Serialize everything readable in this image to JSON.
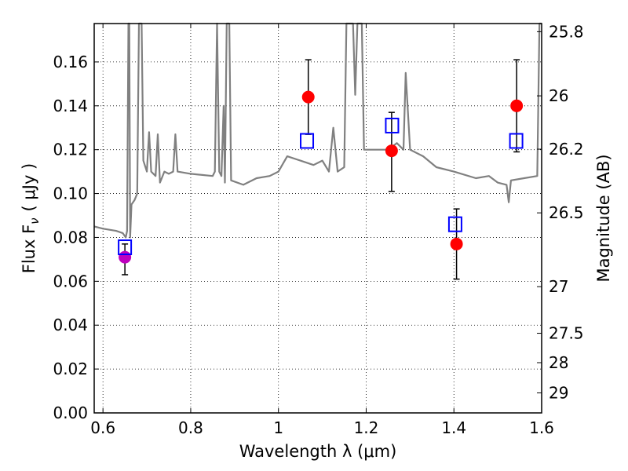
{
  "chart_data": {
    "type": "scatter",
    "xlabel": "Wavelength  λ (μm)",
    "ylabel": "Flux  F",
    "ylabel_sub": "ν",
    "ylabel_unit": "( μJy )",
    "y2label": "Magnitude (AB)",
    "xlim": [
      0.58,
      1.6
    ],
    "ylim": [
      0.0,
      0.1775
    ],
    "grid": true,
    "xticks": [
      {
        "value": 0.6,
        "label": "0.6"
      },
      {
        "value": 0.8,
        "label": "0.8"
      },
      {
        "value": 1.0,
        "label": "1"
      },
      {
        "value": 1.2,
        "label": "1.2"
      },
      {
        "value": 1.4,
        "label": "1.4"
      },
      {
        "value": 1.6,
        "label": "1.6"
      }
    ],
    "yticks": [
      {
        "value": 0.0,
        "label": "0.00"
      },
      {
        "value": 0.02,
        "label": "0.02"
      },
      {
        "value": 0.04,
        "label": "0.04"
      },
      {
        "value": 0.06,
        "label": "0.06"
      },
      {
        "value": 0.08,
        "label": "0.08"
      },
      {
        "value": 0.1,
        "label": "0.10"
      },
      {
        "value": 0.12,
        "label": "0.12"
      },
      {
        "value": 0.14,
        "label": "0.14"
      },
      {
        "value": 0.16,
        "label": "0.16"
      }
    ],
    "y2ticks": [
      {
        "value": 25.8,
        "label": "25.8"
      },
      {
        "value": 26.0,
        "label": "26"
      },
      {
        "value": 26.2,
        "label": "26.2"
      },
      {
        "value": 26.5,
        "label": "26.5"
      },
      {
        "value": 27.0,
        "label": "27"
      },
      {
        "value": 27.5,
        "label": "27.5"
      },
      {
        "value": 28.0,
        "label": "28"
      },
      {
        "value": 29.0,
        "label": "29"
      }
    ],
    "series": [
      {
        "kind": "line",
        "color": "#808080",
        "points": [
          [
            0.58,
            0.085
          ],
          [
            0.6,
            0.084
          ],
          [
            0.63,
            0.083
          ],
          [
            0.645,
            0.082
          ],
          [
            0.652,
            0.08
          ],
          [
            0.655,
            0.083
          ],
          [
            0.658,
            0.178
          ],
          [
            0.66,
            0.178
          ],
          [
            0.662,
            0.08
          ],
          [
            0.665,
            0.095
          ],
          [
            0.672,
            0.097
          ],
          [
            0.678,
            0.1
          ],
          [
            0.682,
            0.178
          ],
          [
            0.688,
            0.178
          ],
          [
            0.692,
            0.115
          ],
          [
            0.7,
            0.11
          ],
          [
            0.705,
            0.128
          ],
          [
            0.71,
            0.11
          ],
          [
            0.72,
            0.108
          ],
          [
            0.725,
            0.127
          ],
          [
            0.73,
            0.105
          ],
          [
            0.74,
            0.11
          ],
          [
            0.75,
            0.109
          ],
          [
            0.76,
            0.11
          ],
          [
            0.765,
            0.127
          ],
          [
            0.77,
            0.11
          ],
          [
            0.8,
            0.109
          ],
          [
            0.85,
            0.108
          ],
          [
            0.855,
            0.11
          ],
          [
            0.86,
            0.178
          ],
          [
            0.865,
            0.11
          ],
          [
            0.87,
            0.108
          ],
          [
            0.875,
            0.14
          ],
          [
            0.878,
            0.105
          ],
          [
            0.882,
            0.178
          ],
          [
            0.888,
            0.178
          ],
          [
            0.892,
            0.106
          ],
          [
            0.92,
            0.104
          ],
          [
            0.95,
            0.107
          ],
          [
            0.98,
            0.108
          ],
          [
            1.0,
            0.11
          ],
          [
            1.02,
            0.117
          ],
          [
            1.05,
            0.115
          ],
          [
            1.08,
            0.113
          ],
          [
            1.1,
            0.115
          ],
          [
            1.115,
            0.11
          ],
          [
            1.125,
            0.13
          ],
          [
            1.135,
            0.11
          ],
          [
            1.15,
            0.112
          ],
          [
            1.155,
            0.178
          ],
          [
            1.16,
            0.178
          ],
          [
            1.165,
            0.178
          ],
          [
            1.17,
            0.178
          ],
          [
            1.175,
            0.145
          ],
          [
            1.18,
            0.178
          ],
          [
            1.19,
            0.178
          ],
          [
            1.195,
            0.12
          ],
          [
            1.22,
            0.12
          ],
          [
            1.25,
            0.12
          ],
          [
            1.27,
            0.123
          ],
          [
            1.285,
            0.12
          ],
          [
            1.29,
            0.155
          ],
          [
            1.3,
            0.12
          ],
          [
            1.33,
            0.117
          ],
          [
            1.36,
            0.112
          ],
          [
            1.4,
            0.11
          ],
          [
            1.45,
            0.107
          ],
          [
            1.48,
            0.108
          ],
          [
            1.5,
            0.105
          ],
          [
            1.52,
            0.104
          ],
          [
            1.525,
            0.096
          ],
          [
            1.53,
            0.106
          ],
          [
            1.56,
            0.107
          ],
          [
            1.59,
            0.108
          ],
          [
            1.595,
            0.178
          ],
          [
            1.6,
            0.178
          ]
        ]
      },
      {
        "kind": "markers",
        "marker": "circle",
        "color": "#ff0000",
        "points": [
          [
            1.068,
            0.144
          ],
          [
            1.258,
            0.1195
          ],
          [
            1.406,
            0.077
          ],
          [
            1.543,
            0.14
          ]
        ]
      },
      {
        "kind": "markers",
        "marker": "circle",
        "color": "#bf00bf",
        "points": [
          [
            0.65,
            0.071
          ]
        ]
      },
      {
        "kind": "markers",
        "marker": "square",
        "color": "#0000ff",
        "points": [
          [
            0.65,
            0.0755
          ],
          [
            1.065,
            0.124
          ],
          [
            1.259,
            0.131
          ],
          [
            1.403,
            0.086
          ],
          [
            1.542,
            0.124
          ]
        ]
      },
      {
        "kind": "errorbars",
        "color": "#000000",
        "bars": [
          {
            "x": 0.65,
            "low": 0.063,
            "high": 0.077
          },
          {
            "x": 1.068,
            "low": 0.127,
            "high": 0.161
          },
          {
            "x": 1.258,
            "low": 0.101,
            "high": 0.137
          },
          {
            "x": 1.406,
            "low": 0.061,
            "high": 0.093
          },
          {
            "x": 1.543,
            "low": 0.119,
            "high": 0.161
          }
        ]
      }
    ]
  }
}
